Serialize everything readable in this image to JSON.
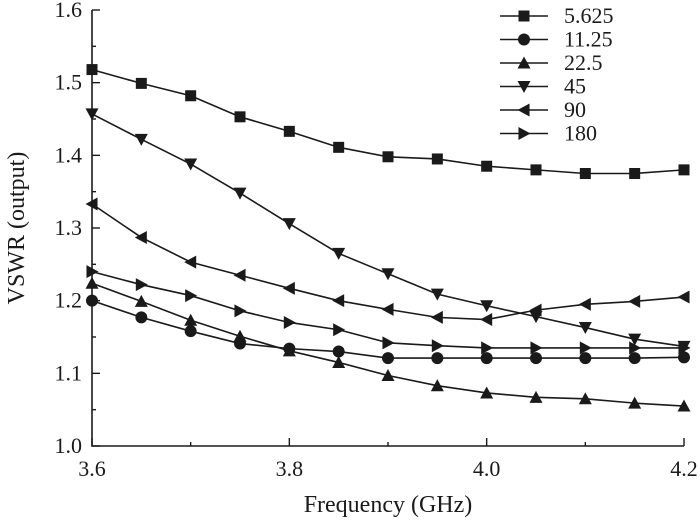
{
  "chart_data": {
    "type": "line",
    "xlabel": "Frequency (GHz)",
    "ylabel": "VSWR (output)",
    "xlim": [
      3.6,
      4.2
    ],
    "ylim": [
      1.0,
      1.6
    ],
    "x_ticks": [
      "3.6",
      "3.8",
      "4.0",
      "4.2"
    ],
    "y_ticks": [
      "1.0",
      "1.1",
      "1.2",
      "1.3",
      "1.4",
      "1.5",
      "1.6"
    ],
    "grid": false,
    "legend_position": "top-right",
    "x": [
      3.6,
      3.65,
      3.7,
      3.75,
      3.8,
      3.85,
      3.9,
      3.95,
      4.0,
      4.05,
      4.1,
      4.15,
      4.2
    ],
    "series": [
      {
        "name": "5.625",
        "marker": "square",
        "values": [
          1.518,
          1.499,
          1.482,
          1.453,
          1.433,
          1.411,
          1.398,
          1.395,
          1.385,
          1.38,
          1.375,
          1.375,
          1.38
        ]
      },
      {
        "name": "11.25",
        "marker": "circle",
        "values": [
          1.2,
          1.177,
          1.158,
          1.141,
          1.134,
          1.13,
          1.121,
          1.121,
          1.121,
          1.121,
          1.121,
          1.121,
          1.122
        ]
      },
      {
        "name": "22.5",
        "marker": "triangle-up",
        "values": [
          1.224,
          1.199,
          1.173,
          1.151,
          1.131,
          1.115,
          1.097,
          1.083,
          1.073,
          1.067,
          1.065,
          1.059,
          1.055
        ]
      },
      {
        "name": "45",
        "marker": "triangle-down",
        "values": [
          1.457,
          1.422,
          1.388,
          1.348,
          1.306,
          1.265,
          1.237,
          1.209,
          1.193,
          1.178,
          1.163,
          1.147,
          1.137
        ]
      },
      {
        "name": "90",
        "marker": "triangle-left",
        "values": [
          1.333,
          1.287,
          1.253,
          1.235,
          1.217,
          1.2,
          1.188,
          1.177,
          1.174,
          1.187,
          1.195,
          1.199,
          1.205
        ]
      },
      {
        "name": "180",
        "marker": "triangle-right",
        "values": [
          1.24,
          1.222,
          1.207,
          1.186,
          1.17,
          1.16,
          1.142,
          1.138,
          1.135,
          1.135,
          1.135,
          1.135,
          1.135
        ]
      }
    ]
  }
}
